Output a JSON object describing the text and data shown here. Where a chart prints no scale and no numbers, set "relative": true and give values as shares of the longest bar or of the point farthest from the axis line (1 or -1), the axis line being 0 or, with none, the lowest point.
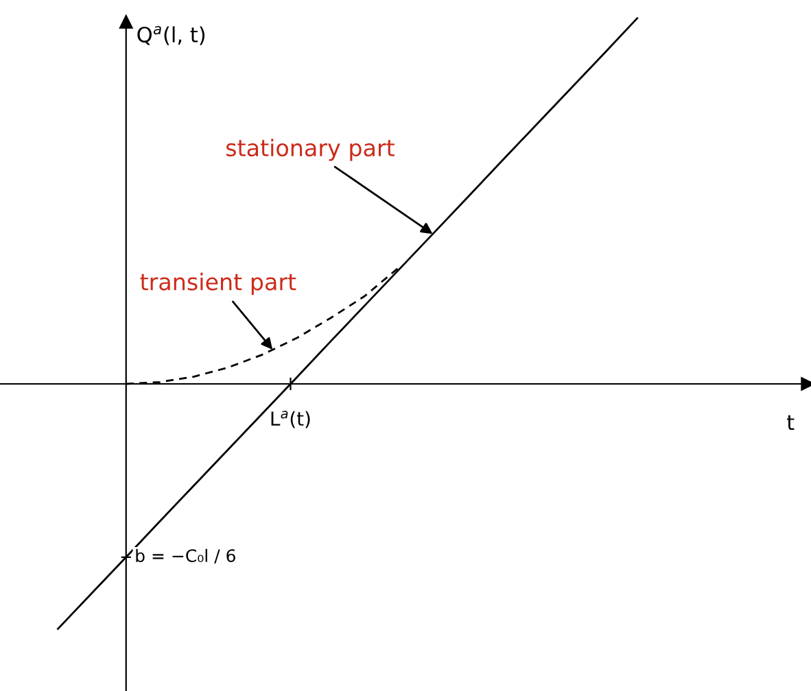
{
  "chart_data": {
    "type": "line",
    "relative": true,
    "ylabel": "Q$^{a}$(l, t)",
    "categories": [
      null,
      null,
      null,
      null,
      null,
      null,
      null,
      null,
      null,
      null,
      null,
      null,
      null,
      null,
      null,
      null,
      null,
      null
    ],
    "series": [
      {
        "color": "#000000",
        "line_style": "solid",
        "values": [
          -0.67,
          -0.572,
          -0.474,
          -0.375,
          -0.277,
          -0.179,
          -0.081,
          0.017,
          0.116,
          0.214,
          0.312,
          0.41,
          0.508,
          0.607,
          0.705,
          0.803,
          0.901,
          1.0
        ]
      },
      {
        "color": "#000000",
        "line_style": "dashed",
        "values": [
          null,
          null,
          0,
          0.005,
          0.02,
          0.045,
          0.08,
          0.125,
          0.18,
          0.24,
          0.318,
          null,
          null,
          null,
          null,
          null,
          null,
          null
        ]
      }
    ],
    "annotations": [
      "stationary part",
      "transient part",
      "L$^{a}$(t)",
      "b = −C₀l / 6",
      "t"
    ]
  }
}
